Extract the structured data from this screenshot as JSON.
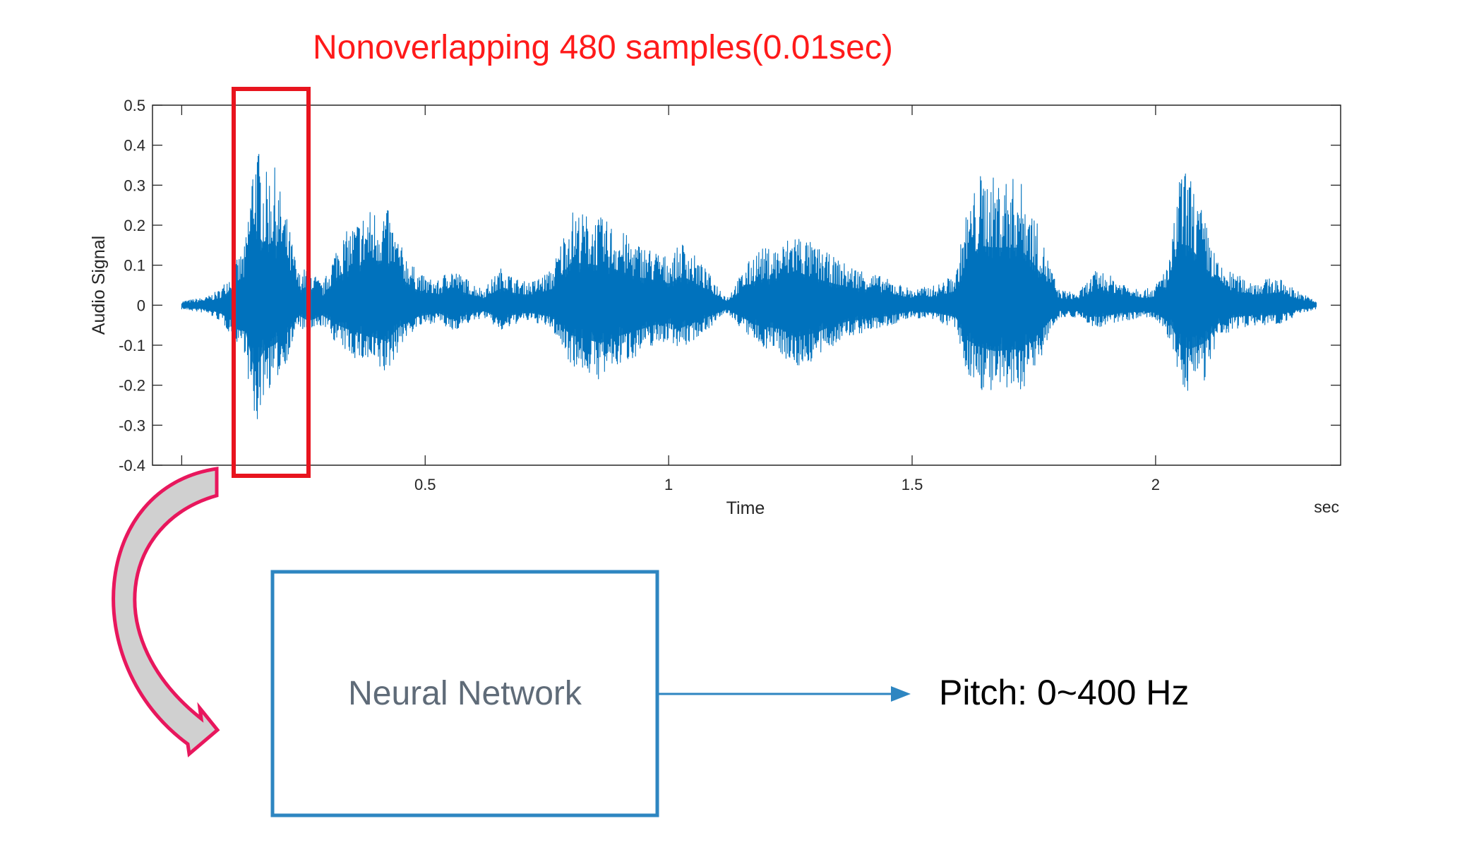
{
  "annotation": {
    "window_label": "Nonoverlapping 480 samples(0.01sec)",
    "window_color": "#e8141e"
  },
  "network": {
    "label": "Neural Network",
    "box_color": "#2e86c1"
  },
  "output": {
    "label": "Pitch: 0~400 Hz"
  },
  "curved_arrow": {
    "color": "#e8175d",
    "fill": "#d0d0d0"
  },
  "chart_data": {
    "type": "line",
    "xlabel": "Time",
    "x_unit_label": "sec",
    "ylabel": "Audio Signal",
    "xlim": [
      -0.06,
      2.38
    ],
    "ylim": [
      -0.4,
      0.5
    ],
    "x_ticks": [
      0.5,
      1,
      1.5,
      2
    ],
    "x_tick_labels": [
      "0.5",
      "1",
      "1.5",
      "2"
    ],
    "y_ticks": [
      0.5,
      0.4,
      0.3,
      0.2,
      0.1,
      0,
      -0.1,
      -0.2,
      -0.3,
      -0.4
    ],
    "y_tick_labels": [
      "0.5",
      "0.4",
      "0.3",
      "0.2",
      "0.1",
      "0",
      "-0.1",
      "-0.2",
      "-0.3",
      "-0.4"
    ],
    "grid": false,
    "series_color": "#0072bd",
    "highlight_window_x": [
      0.11,
      0.265
    ],
    "envelope": {
      "t": [
        0.0,
        0.05,
        0.08,
        0.13,
        0.15,
        0.17,
        0.19,
        0.22,
        0.24,
        0.26,
        0.29,
        0.32,
        0.35,
        0.38,
        0.42,
        0.45,
        0.48,
        0.5,
        0.53,
        0.55,
        0.58,
        0.62,
        0.66,
        0.68,
        0.7,
        0.72,
        0.76,
        0.8,
        0.86,
        0.89,
        0.93,
        0.97,
        1.0,
        1.03,
        1.07,
        1.12,
        1.18,
        1.23,
        1.26,
        1.3,
        1.34,
        1.37,
        1.4,
        1.46,
        1.5,
        1.55,
        1.59,
        1.61,
        1.64,
        1.67,
        1.72,
        1.75,
        1.8,
        1.84,
        1.88,
        1.93,
        1.98,
        2.0,
        2.03,
        2.05,
        2.07,
        2.1,
        2.13,
        2.16,
        2.2,
        2.25,
        2.3,
        2.33
      ],
      "upper": [
        0.01,
        0.02,
        0.04,
        0.15,
        0.43,
        0.33,
        0.35,
        0.2,
        0.08,
        0.1,
        0.05,
        0.16,
        0.2,
        0.24,
        0.25,
        0.15,
        0.09,
        0.07,
        0.06,
        0.1,
        0.07,
        0.04,
        0.1,
        0.07,
        0.06,
        0.06,
        0.09,
        0.24,
        0.22,
        0.2,
        0.16,
        0.14,
        0.12,
        0.16,
        0.1,
        0.02,
        0.14,
        0.15,
        0.19,
        0.15,
        0.12,
        0.1,
        0.09,
        0.06,
        0.04,
        0.05,
        0.08,
        0.23,
        0.33,
        0.32,
        0.32,
        0.23,
        0.04,
        0.03,
        0.09,
        0.06,
        0.04,
        0.05,
        0.12,
        0.34,
        0.33,
        0.22,
        0.1,
        0.08,
        0.06,
        0.07,
        0.03,
        0.01
      ],
      "lower": [
        -0.01,
        -0.02,
        -0.04,
        -0.12,
        -0.33,
        -0.22,
        -0.2,
        -0.13,
        -0.05,
        -0.08,
        -0.05,
        -0.1,
        -0.13,
        -0.15,
        -0.18,
        -0.1,
        -0.06,
        -0.05,
        -0.04,
        -0.07,
        -0.05,
        -0.03,
        -0.07,
        -0.05,
        -0.04,
        -0.04,
        -0.06,
        -0.15,
        -0.19,
        -0.16,
        -0.13,
        -0.1,
        -0.09,
        -0.11,
        -0.07,
        -0.02,
        -0.1,
        -0.12,
        -0.16,
        -0.14,
        -0.1,
        -0.08,
        -0.07,
        -0.05,
        -0.03,
        -0.04,
        -0.06,
        -0.17,
        -0.21,
        -0.23,
        -0.22,
        -0.17,
        -0.03,
        -0.03,
        -0.06,
        -0.04,
        -0.03,
        -0.04,
        -0.09,
        -0.2,
        -0.22,
        -0.19,
        -0.09,
        -0.06,
        -0.05,
        -0.05,
        -0.02,
        -0.01
      ]
    }
  }
}
